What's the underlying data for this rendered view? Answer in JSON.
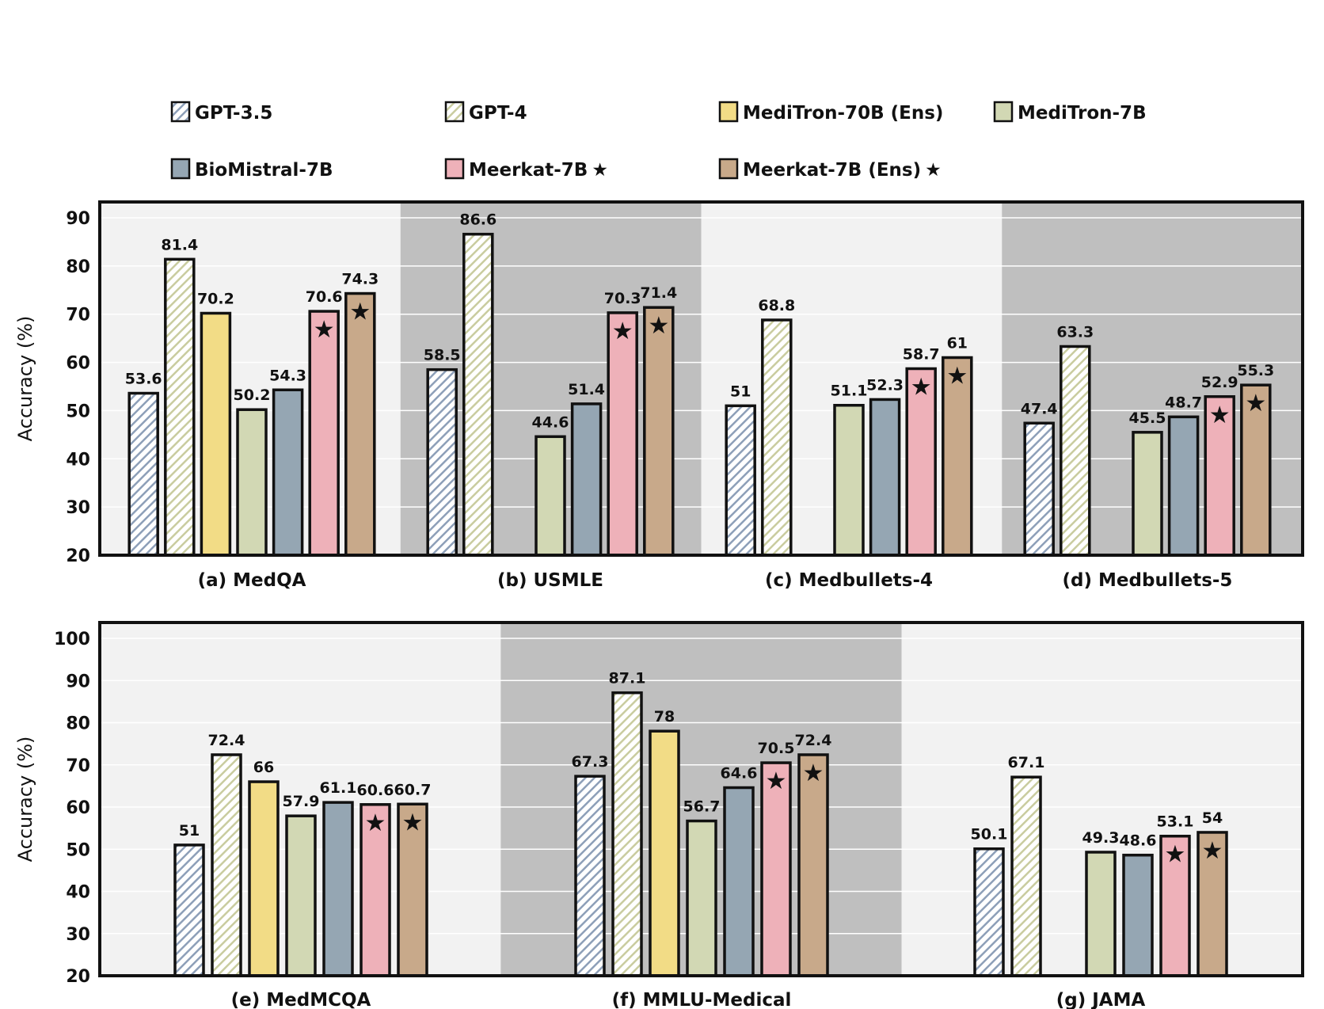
{
  "legend": {
    "items": [
      {
        "label": "GPT-3.5",
        "star": false,
        "key": "gpt35"
      },
      {
        "label": "GPT-4",
        "star": false,
        "key": "gpt4"
      },
      {
        "label": "MediTron-70B (Ens)",
        "star": false,
        "key": "meditron70"
      },
      {
        "label": "MediTron-7B",
        "star": false,
        "key": "meditron7"
      },
      {
        "label": "BioMistral-7B",
        "star": false,
        "key": "biomistral"
      },
      {
        "label": "Meerkat-7B",
        "star": true,
        "key": "meerkat"
      },
      {
        "label": "Meerkat-7B (Ens)",
        "star": true,
        "key": "meerkatens"
      }
    ]
  },
  "colors": {
    "gpt35": "#8d9fb8",
    "gpt4": "#d9dcbc",
    "meditron70": "#f2dc86",
    "meditron7": "#d2d8b4",
    "biomistral": "#95a6b3",
    "meerkat": "#eeb1b9",
    "meerkatens": "#c8a98a",
    "panel_light": "#f2f2f2",
    "panel_dark": "#bfbfbf"
  },
  "star_glyph": "★",
  "chart_data": [
    {
      "type": "bar",
      "ylabel": "Accuracy (%)",
      "ylim": [
        20,
        90
      ],
      "yticks": [
        20,
        30,
        40,
        50,
        60,
        70,
        80,
        90
      ],
      "series_names": [
        "GPT-3.5",
        "GPT-4",
        "MediTron-70B (Ens)",
        "MediTron-7B",
        "BioMistral-7B",
        "Meerkat-7B",
        "Meerkat-7B (Ens)"
      ],
      "groups": [
        {
          "label": "(a) MedQA",
          "shade": "light",
          "values": [
            53.6,
            81.4,
            70.2,
            50.2,
            54.3,
            70.6,
            74.3
          ],
          "labels": [
            "53.6",
            "81.4",
            "70.2",
            "50.2",
            "54.3",
            "70.6",
            "74.3"
          ]
        },
        {
          "label": "(b) USMLE",
          "shade": "dark",
          "values": [
            58.5,
            86.6,
            null,
            44.6,
            51.4,
            70.3,
            71.4
          ],
          "labels": [
            "58.5",
            "86.6",
            "",
            "44.6",
            "51.4",
            "70.3",
            "71.4"
          ]
        },
        {
          "label": "(c) Medbullets-4",
          "shade": "light",
          "values": [
            51,
            68.8,
            null,
            51.1,
            52.3,
            58.7,
            61
          ],
          "labels": [
            "51",
            "68.8",
            "",
            "51.1",
            "52.3",
            "58.7",
            "61"
          ]
        },
        {
          "label": "(d) Medbullets-5",
          "shade": "dark",
          "values": [
            47.4,
            63.3,
            null,
            45.5,
            48.7,
            52.9,
            55.3
          ],
          "labels": [
            "47.4",
            "63.3",
            "",
            "45.5",
            "48.7",
            "52.9",
            "55.3"
          ]
        }
      ]
    },
    {
      "type": "bar",
      "ylabel": "Accuracy (%)",
      "ylim": [
        20,
        100
      ],
      "yticks": [
        20,
        30,
        40,
        50,
        60,
        70,
        80,
        90,
        100
      ],
      "series_names": [
        "GPT-3.5",
        "GPT-4",
        "MediTron-70B (Ens)",
        "MediTron-7B",
        "BioMistral-7B",
        "Meerkat-7B",
        "Meerkat-7B (Ens)"
      ],
      "groups": [
        {
          "label": "(e) MedMCQA",
          "shade": "light",
          "values": [
            51,
            72.4,
            66,
            57.9,
            61.1,
            60.6,
            60.7
          ],
          "labels": [
            "51",
            "72.4",
            "66",
            "57.9",
            "61.1",
            "60.6",
            "60.7"
          ]
        },
        {
          "label": "(f) MMLU-Medical",
          "shade": "dark",
          "values": [
            67.3,
            87.1,
            78,
            56.7,
            64.6,
            70.5,
            72.4
          ],
          "labels": [
            "67.3",
            "87.1",
            "78",
            "56.7",
            "64.6",
            "70.5",
            "72.4"
          ]
        },
        {
          "label": "(g) JAMA",
          "shade": "light",
          "values": [
            50.1,
            67.1,
            null,
            49.3,
            48.6,
            53.1,
            54
          ],
          "labels": [
            "50.1",
            "67.1",
            "",
            "49.3",
            "48.6",
            "53.1",
            "54"
          ]
        }
      ]
    }
  ]
}
